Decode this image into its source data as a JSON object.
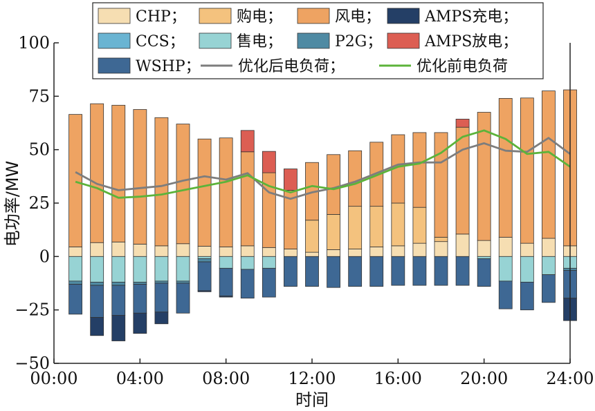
{
  "chart_data": {
    "type": "bar",
    "stacked": true,
    "xlabel": "时间",
    "ylabel": "电功率/MW",
    "ylim": [
      -50,
      100
    ],
    "yticks": [
      "−50",
      "−25",
      "0",
      "25",
      "50",
      "75",
      "100"
    ],
    "ytick_values": [
      -50,
      -25,
      0,
      25,
      50,
      75,
      100
    ],
    "xlim": [
      0,
      24
    ],
    "xticks": [
      "00:00",
      "04:00",
      "08:00",
      "12:00",
      "16:00",
      "20:00",
      "24:00"
    ],
    "xtick_values": [
      0,
      4,
      8,
      12,
      16,
      20,
      24
    ],
    "hours": [
      1,
      2,
      3,
      4,
      5,
      6,
      7,
      8,
      9,
      10,
      11,
      12,
      13,
      14,
      15,
      16,
      17,
      18,
      19,
      20,
      21,
      22,
      23,
      24
    ],
    "legend": {
      "placement": "top"
    },
    "positive_series": [
      {
        "name": "CHP；",
        "key": "chp",
        "color": "#f6deb2",
        "values": [
          4.5,
          6.5,
          6.8,
          5.8,
          5.0,
          6.0,
          4.8,
          4.5,
          5.0,
          4.2,
          3.5,
          2.0,
          3.2,
          3.5,
          4.5,
          5.0,
          6.2,
          7.0,
          10.5,
          7.5,
          9.0,
          6.2,
          8.5,
          5.0
        ]
      },
      {
        "name": "购电；",
        "key": "buy",
        "color": "#f4c27e",
        "values": [
          0,
          0,
          0,
          0,
          0,
          0,
          0,
          0,
          0,
          0,
          0,
          15.0,
          16.5,
          20.0,
          19.0,
          20.0,
          16.8,
          2.0,
          0,
          0,
          0,
          0,
          0,
          0
        ]
      },
      {
        "name": "风电；",
        "key": "wind",
        "color": "#eea362",
        "values": [
          62.0,
          65.0,
          64.0,
          63.0,
          60.0,
          56.0,
          50.2,
          51.0,
          44.0,
          35.0,
          27.5,
          27.0,
          28.0,
          26.0,
          30.0,
          32.0,
          35.0,
          49.0,
          50.0,
          60.0,
          65.0,
          68.0,
          69.0,
          73.0
        ]
      },
      {
        "name": "AMPS放电；",
        "key": "amps_discharge",
        "color": "#dc5e53",
        "values": [
          0,
          0,
          0,
          0,
          0,
          0,
          0,
          0,
          10.0,
          10.0,
          10.0,
          0,
          0,
          0,
          0,
          0,
          0,
          0,
          3.8,
          0,
          0,
          0,
          0,
          0
        ]
      }
    ],
    "negative_series": [
      {
        "name": "售电；",
        "key": "sell",
        "color": "#97d3d4",
        "values": [
          -11.5,
          -12.0,
          -12.0,
          -12.0,
          -11.5,
          -11.5,
          -1.0,
          -5.5,
          -6.0,
          -5.5,
          0,
          0,
          0,
          0,
          0,
          0,
          0,
          0,
          0,
          -1.0,
          -11.5,
          -12.0,
          -8.5,
          -5.5
        ]
      },
      {
        "name": "P2G；",
        "key": "p2g",
        "color": "#4f8aa3",
        "values": [
          -1.5,
          -1.5,
          -1.5,
          -1.0,
          -1.0,
          -1.0,
          -1.5,
          0,
          0,
          0,
          0,
          0,
          0,
          0,
          0,
          0,
          0,
          0,
          0,
          0,
          0,
          0,
          0,
          -1.0
        ]
      },
      {
        "name": "WSHP；",
        "key": "wshp",
        "color": "#3e6894",
        "values": [
          -14.0,
          -15.0,
          -14.0,
          -13.5,
          -13.5,
          -14.0,
          -13.5,
          -13.0,
          -13.5,
          -13.5,
          -14.0,
          -14.0,
          -14.5,
          -14.0,
          -14.0,
          -13.5,
          -13.5,
          -13.5,
          -13.5,
          -13.0,
          -13.0,
          -13.0,
          -13.0,
          -13.0
        ]
      },
      {
        "name": "AMPS充电；",
        "key": "amps_charge",
        "color": "#243f66",
        "values": [
          0,
          -8.5,
          -12.0,
          -9.5,
          -5.5,
          0,
          -0.5,
          -0.5,
          0,
          0,
          0,
          0,
          0,
          0,
          0,
          0,
          0,
          0,
          0,
          0,
          0,
          0,
          0,
          -10.5
        ]
      },
      {
        "name": "CCS；",
        "key": "ccs",
        "color": "#6ab4d2",
        "values": [
          0,
          0,
          0,
          0,
          0,
          0,
          0,
          0,
          0,
          0,
          0,
          0,
          0,
          0,
          0,
          0,
          0,
          0,
          0,
          0,
          0,
          0,
          0,
          0
        ]
      }
    ],
    "line_series": [
      {
        "name": "优化后电负荷；",
        "key": "load_after",
        "color": "#7d7d7d",
        "x": [
          1,
          2,
          3,
          4,
          5,
          6,
          7,
          8,
          9,
          10,
          11,
          12,
          13,
          14,
          15,
          16,
          17,
          18,
          19,
          20,
          21,
          22,
          23,
          24
        ],
        "values": [
          39.5,
          34.0,
          31.0,
          32.0,
          33.0,
          35.5,
          37.5,
          36.0,
          39.0,
          30.0,
          27.0,
          30.0,
          32.0,
          35.0,
          39.0,
          43.0,
          44.0,
          44.0,
          50.0,
          53.0,
          49.5,
          49.0,
          55.5,
          48.0
        ]
      },
      {
        "name": "优化前电负荷",
        "key": "load_before",
        "color": "#5cb33a",
        "x": [
          1,
          2,
          3,
          4,
          5,
          6,
          7,
          8,
          9,
          10,
          11,
          12,
          13,
          14,
          15,
          16,
          17,
          18,
          19,
          20,
          21,
          22,
          23,
          24
        ],
        "values": [
          35.0,
          32.0,
          27.5,
          28.0,
          29.0,
          31.0,
          33.0,
          35.0,
          38.0,
          33.0,
          30.0,
          33.0,
          31.5,
          34.0,
          38.0,
          42.0,
          43.5,
          48.5,
          56.0,
          59.0,
          55.0,
          48.0,
          49.0,
          42.0
        ]
      }
    ],
    "legend_items": [
      {
        "label": "CHP；",
        "kind": "patch",
        "color": "#f6deb2"
      },
      {
        "label": "购电；",
        "kind": "patch",
        "color": "#f4c27e"
      },
      {
        "label": "风电；",
        "kind": "patch",
        "color": "#eea362"
      },
      {
        "label": "AMPS充电；",
        "kind": "patch",
        "color": "#243f66"
      },
      {
        "label": "CCS；",
        "kind": "patch",
        "color": "#6ab4d2"
      },
      {
        "label": "售电；",
        "kind": "patch",
        "color": "#97d3d4"
      },
      {
        "label": "P2G；",
        "kind": "patch",
        "color": "#4f8aa3"
      },
      {
        "label": "AMPS放电；",
        "kind": "patch",
        "color": "#dc5e53"
      },
      {
        "label": "WSHP；",
        "kind": "patch",
        "color": "#3e6894"
      },
      {
        "label": "优化后电负荷；",
        "kind": "line",
        "color": "#7d7d7d"
      },
      {
        "label": "优化前电负荷",
        "kind": "line",
        "color": "#5cb33a"
      }
    ]
  }
}
